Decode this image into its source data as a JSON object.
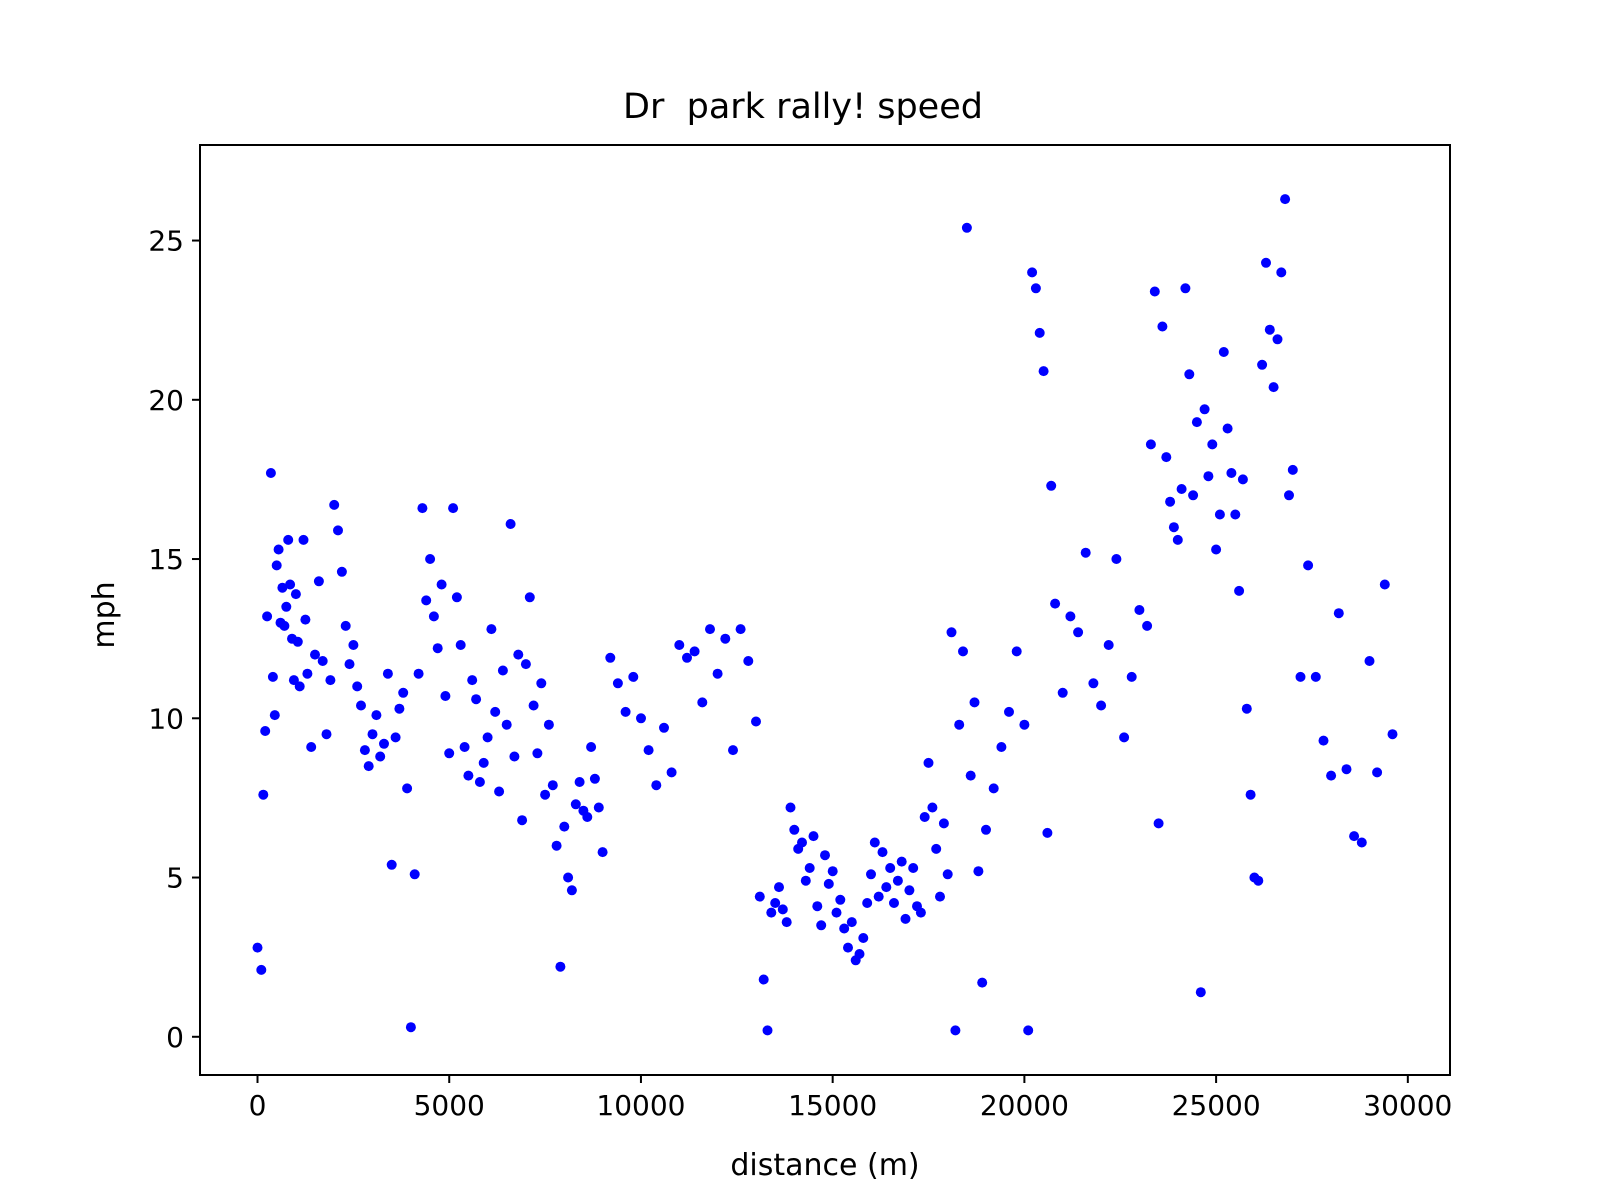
{
  "chart_data": {
    "type": "scatter",
    "title": "Dr  park rally! speed",
    "xlabel": "distance (m)",
    "ylabel": "mph",
    "xlim": [
      -1500,
      31100
    ],
    "ylim": [
      -1.2,
      28.0
    ],
    "xticks": [
      0,
      5000,
      10000,
      15000,
      20000,
      25000,
      30000
    ],
    "yticks": [
      0,
      5,
      10,
      15,
      20,
      25
    ],
    "grid": false,
    "marker_color": "#0000ff",
    "series": [
      {
        "name": "speed",
        "x": [
          0,
          100,
          150,
          200,
          250,
          350,
          400,
          450,
          500,
          550,
          600,
          650,
          700,
          750,
          800,
          850,
          900,
          950,
          1000,
          1050,
          1100,
          1200,
          1250,
          1300,
          1400,
          1500,
          1600,
          1700,
          1800,
          1900,
          2000,
          2100,
          2200,
          2300,
          2400,
          2500,
          2600,
          2700,
          2800,
          2900,
          3000,
          3100,
          3200,
          3300,
          3400,
          3500,
          3600,
          3700,
          3800,
          3900,
          4000,
          4100,
          4200,
          4300,
          4400,
          4500,
          4600,
          4700,
          4800,
          4900,
          5000,
          5100,
          5200,
          5300,
          5400,
          5500,
          5600,
          5700,
          5800,
          5900,
          6000,
          6100,
          6200,
          6300,
          6400,
          6500,
          6600,
          6700,
          6800,
          6900,
          7000,
          7100,
          7200,
          7300,
          7400,
          7500,
          7600,
          7700,
          7800,
          7900,
          8000,
          8100,
          8200,
          8300,
          8400,
          8500,
          8600,
          8700,
          8800,
          8900,
          9000,
          9200,
          9400,
          9600,
          9800,
          10000,
          10200,
          10400,
          10600,
          10800,
          11000,
          11200,
          11400,
          11600,
          11800,
          12000,
          12200,
          12400,
          12600,
          12800,
          13000,
          13100,
          13200,
          13300,
          13400,
          13500,
          13600,
          13700,
          13800,
          13900,
          14000,
          14100,
          14200,
          14300,
          14400,
          14500,
          14600,
          14700,
          14800,
          14900,
          15000,
          15100,
          15200,
          15300,
          15400,
          15500,
          15600,
          15700,
          15800,
          15900,
          16000,
          16100,
          16200,
          16300,
          16400,
          16500,
          16600,
          16700,
          16800,
          16900,
          17000,
          17100,
          17200,
          17300,
          17400,
          17500,
          17600,
          17700,
          17800,
          17900,
          18000,
          18100,
          18200,
          18300,
          18400,
          18500,
          18600,
          18700,
          18800,
          18900,
          19000,
          19200,
          19400,
          19600,
          19800,
          20000,
          20100,
          20200,
          20300,
          20400,
          20500,
          20600,
          20700,
          20800,
          21000,
          21200,
          21400,
          21600,
          21800,
          22000,
          22200,
          22400,
          22600,
          22800,
          23000,
          23200,
          23300,
          23400,
          23500,
          23600,
          23700,
          23800,
          23900,
          24000,
          24100,
          24200,
          24300,
          24400,
          24500,
          24600,
          24700,
          24800,
          24900,
          25000,
          25100,
          25200,
          25300,
          25400,
          25500,
          25600,
          25700,
          25800,
          25900,
          26000,
          26100,
          26200,
          26300,
          26400,
          26500,
          26600,
          26700,
          26800,
          26900,
          27000,
          27200,
          27400,
          27600,
          27800,
          28000,
          28200,
          28400,
          28600,
          28800,
          29000,
          29200,
          29400,
          29600
        ],
        "y": [
          2.8,
          2.1,
          7.6,
          9.6,
          13.2,
          17.7,
          11.3,
          10.1,
          14.8,
          15.3,
          13.0,
          14.1,
          12.9,
          13.5,
          15.6,
          14.2,
          12.5,
          11.2,
          13.9,
          12.4,
          11.0,
          15.6,
          13.1,
          11.4,
          9.1,
          12.0,
          14.3,
          11.8,
          9.5,
          11.2,
          16.7,
          15.9,
          14.6,
          12.9,
          11.7,
          12.3,
          11.0,
          10.4,
          9.0,
          8.5,
          9.5,
          10.1,
          8.8,
          9.2,
          11.4,
          5.4,
          9.4,
          10.3,
          10.8,
          7.8,
          0.3,
          5.1,
          11.4,
          16.6,
          13.7,
          15.0,
          13.2,
          12.2,
          14.2,
          10.7,
          8.9,
          16.6,
          13.8,
          12.3,
          9.1,
          8.2,
          11.2,
          10.6,
          8.0,
          8.6,
          9.4,
          12.8,
          10.2,
          7.7,
          11.5,
          9.8,
          16.1,
          8.8,
          12.0,
          6.8,
          11.7,
          13.8,
          10.4,
          8.9,
          11.1,
          7.6,
          9.8,
          7.9,
          6.0,
          2.2,
          6.6,
          5.0,
          4.6,
          7.3,
          8.0,
          7.1,
          6.9,
          9.1,
          8.1,
          7.2,
          5.8,
          11.9,
          11.1,
          10.2,
          11.3,
          10.0,
          9.0,
          7.9,
          9.7,
          8.3,
          12.3,
          11.9,
          12.1,
          10.5,
          12.8,
          11.4,
          12.5,
          9.0,
          12.8,
          11.8,
          9.9,
          4.4,
          1.8,
          0.2,
          3.9,
          4.2,
          4.7,
          4.0,
          3.6,
          7.2,
          6.5,
          5.9,
          6.1,
          4.9,
          5.3,
          6.3,
          4.1,
          3.5,
          5.7,
          4.8,
          5.2,
          3.9,
          4.3,
          3.4,
          2.8,
          3.6,
          2.4,
          2.6,
          3.1,
          4.2,
          5.1,
          6.1,
          4.4,
          5.8,
          4.7,
          5.3,
          4.2,
          4.9,
          5.5,
          3.7,
          4.6,
          5.3,
          4.1,
          3.9,
          6.9,
          8.6,
          7.2,
          5.9,
          4.4,
          6.7,
          5.1,
          12.7,
          0.2,
          9.8,
          12.1,
          25.4,
          8.2,
          10.5,
          5.2,
          1.7,
          6.5,
          7.8,
          9.1,
          10.2,
          12.1,
          9.8,
          0.2,
          24.0,
          23.5,
          22.1,
          20.9,
          6.4,
          17.3,
          13.6,
          10.8,
          13.2,
          12.7,
          15.2,
          11.1,
          10.4,
          12.3,
          15.0,
          9.4,
          11.3,
          13.4,
          12.9,
          18.6,
          23.4,
          6.7,
          22.3,
          18.2,
          16.8,
          16.0,
          15.6,
          17.2,
          23.5,
          20.8,
          17.0,
          19.3,
          1.4,
          19.7,
          17.6,
          18.6,
          15.3,
          16.4,
          21.5,
          19.1,
          17.7,
          16.4,
          14.0,
          17.5,
          10.3,
          7.6,
          5.0,
          4.9,
          21.1,
          24.3,
          22.2,
          20.4,
          21.9,
          24.0,
          26.3,
          17.0,
          17.8,
          11.3,
          14.8,
          11.3,
          9.3,
          8.2,
          13.3,
          8.4,
          6.3,
          6.1,
          11.8,
          8.3,
          14.2,
          9.5
        ]
      }
    ]
  }
}
